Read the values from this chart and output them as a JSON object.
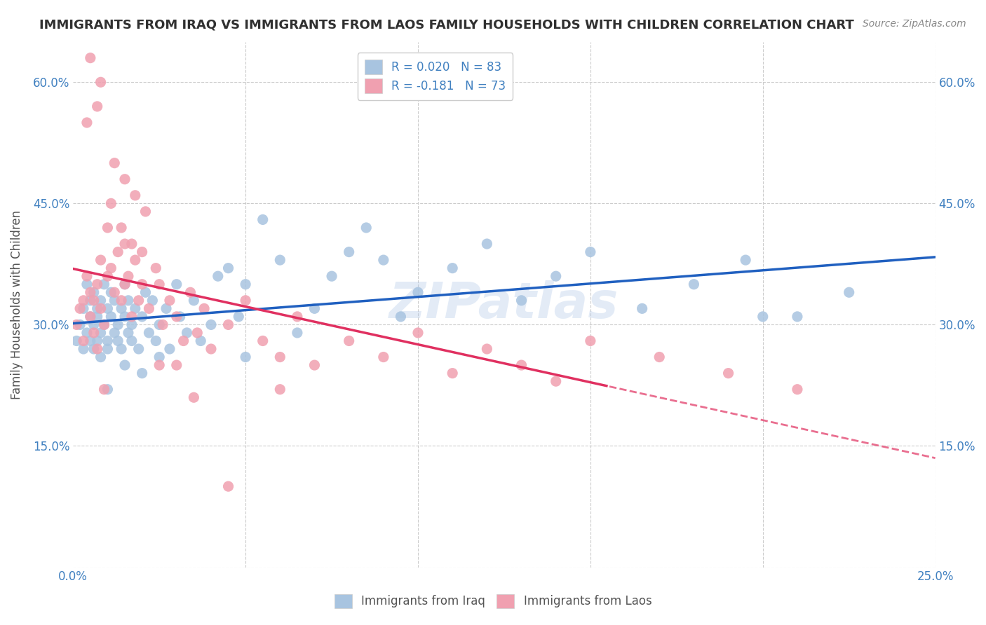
{
  "title": "IMMIGRANTS FROM IRAQ VS IMMIGRANTS FROM LAOS FAMILY HOUSEHOLDS WITH CHILDREN CORRELATION CHART",
  "source": "Source: ZipAtlas.com",
  "ylabel": "Family Households with Children",
  "xlim": [
    0.0,
    0.25
  ],
  "ylim": [
    0.0,
    0.65
  ],
  "yticks": [
    0.0,
    0.15,
    0.3,
    0.45,
    0.6
  ],
  "ytick_labels": [
    "",
    "15.0%",
    "30.0%",
    "45.0%",
    "60.0%"
  ],
  "xticks": [
    0.0,
    0.05,
    0.1,
    0.15,
    0.2,
    0.25
  ],
  "xtick_labels": [
    "0.0%",
    "",
    "",
    "",
    "",
    "25.0%"
  ],
  "iraq_color": "#a8c4e0",
  "laos_color": "#f0a0b0",
  "iraq_line_color": "#2060c0",
  "laos_line_color": "#e03060",
  "r_iraq": 0.02,
  "n_iraq": 83,
  "r_laos": -0.181,
  "n_laos": 73,
  "legend_label_iraq": "Immigrants from Iraq",
  "legend_label_laos": "Immigrants from Laos",
  "watermark": "ZIPatlas",
  "title_color": "#303030",
  "axis_color": "#4080c0",
  "legend_r_color": "#4080c0",
  "iraq_x": [
    0.001,
    0.002,
    0.003,
    0.003,
    0.004,
    0.004,
    0.005,
    0.005,
    0.005,
    0.006,
    0.006,
    0.006,
    0.007,
    0.007,
    0.007,
    0.008,
    0.008,
    0.008,
    0.009,
    0.009,
    0.01,
    0.01,
    0.01,
    0.011,
    0.011,
    0.012,
    0.012,
    0.013,
    0.013,
    0.014,
    0.014,
    0.015,
    0.015,
    0.016,
    0.016,
    0.017,
    0.017,
    0.018,
    0.019,
    0.02,
    0.021,
    0.022,
    0.023,
    0.024,
    0.025,
    0.027,
    0.028,
    0.03,
    0.031,
    0.033,
    0.035,
    0.037,
    0.04,
    0.042,
    0.045,
    0.048,
    0.05,
    0.055,
    0.06,
    0.065,
    0.07,
    0.075,
    0.08,
    0.085,
    0.09,
    0.095,
    0.1,
    0.11,
    0.12,
    0.13,
    0.14,
    0.15,
    0.165,
    0.18,
    0.195,
    0.21,
    0.225,
    0.01,
    0.015,
    0.02,
    0.025,
    0.2,
    0.05
  ],
  "iraq_y": [
    0.28,
    0.3,
    0.32,
    0.27,
    0.35,
    0.29,
    0.31,
    0.28,
    0.33,
    0.3,
    0.27,
    0.34,
    0.32,
    0.28,
    0.31,
    0.29,
    0.33,
    0.26,
    0.3,
    0.35,
    0.28,
    0.32,
    0.27,
    0.31,
    0.34,
    0.29,
    0.33,
    0.28,
    0.3,
    0.32,
    0.27,
    0.35,
    0.31,
    0.29,
    0.33,
    0.28,
    0.3,
    0.32,
    0.27,
    0.31,
    0.34,
    0.29,
    0.33,
    0.28,
    0.3,
    0.32,
    0.27,
    0.35,
    0.31,
    0.29,
    0.33,
    0.28,
    0.3,
    0.36,
    0.37,
    0.31,
    0.35,
    0.43,
    0.38,
    0.29,
    0.32,
    0.36,
    0.39,
    0.42,
    0.38,
    0.31,
    0.34,
    0.37,
    0.4,
    0.33,
    0.36,
    0.39,
    0.32,
    0.35,
    0.38,
    0.31,
    0.34,
    0.22,
    0.25,
    0.24,
    0.26,
    0.31,
    0.26
  ],
  "laos_x": [
    0.001,
    0.002,
    0.003,
    0.003,
    0.004,
    0.005,
    0.005,
    0.006,
    0.006,
    0.007,
    0.007,
    0.008,
    0.008,
    0.009,
    0.01,
    0.01,
    0.011,
    0.012,
    0.013,
    0.014,
    0.015,
    0.015,
    0.016,
    0.017,
    0.018,
    0.019,
    0.02,
    0.022,
    0.024,
    0.026,
    0.028,
    0.03,
    0.032,
    0.034,
    0.036,
    0.038,
    0.04,
    0.045,
    0.05,
    0.055,
    0.06,
    0.065,
    0.07,
    0.08,
    0.09,
    0.1,
    0.11,
    0.12,
    0.13,
    0.14,
    0.004,
    0.007,
    0.009,
    0.012,
    0.015,
    0.018,
    0.021,
    0.025,
    0.03,
    0.15,
    0.17,
    0.19,
    0.21,
    0.005,
    0.008,
    0.011,
    0.014,
    0.017,
    0.02,
    0.025,
    0.035,
    0.045,
    0.06
  ],
  "laos_y": [
    0.3,
    0.32,
    0.33,
    0.28,
    0.36,
    0.31,
    0.34,
    0.29,
    0.33,
    0.35,
    0.27,
    0.38,
    0.32,
    0.3,
    0.42,
    0.36,
    0.37,
    0.34,
    0.39,
    0.33,
    0.4,
    0.35,
    0.36,
    0.31,
    0.38,
    0.33,
    0.35,
    0.32,
    0.37,
    0.3,
    0.33,
    0.31,
    0.28,
    0.34,
    0.29,
    0.32,
    0.27,
    0.3,
    0.33,
    0.28,
    0.26,
    0.31,
    0.25,
    0.28,
    0.26,
    0.29,
    0.24,
    0.27,
    0.25,
    0.23,
    0.55,
    0.57,
    0.22,
    0.5,
    0.48,
    0.46,
    0.44,
    0.35,
    0.25,
    0.28,
    0.26,
    0.24,
    0.22,
    0.63,
    0.6,
    0.45,
    0.42,
    0.4,
    0.39,
    0.25,
    0.21,
    0.1,
    0.22
  ]
}
